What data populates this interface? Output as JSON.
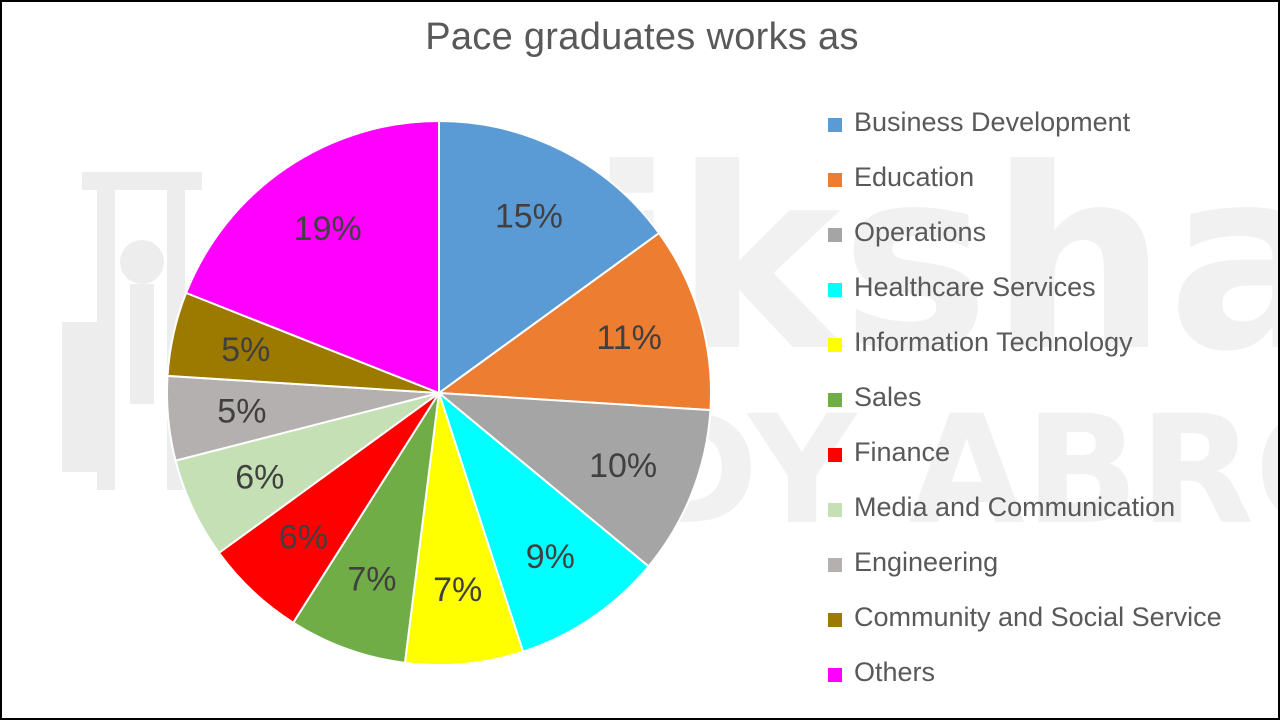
{
  "chart_data": {
    "type": "pie",
    "title": "Pace graduates works as",
    "legend_position": "right",
    "slices": [
      {
        "label": "Business Development",
        "value": 15,
        "value_label": "15%",
        "color": "#5B9BD5"
      },
      {
        "label": "Education",
        "value": 11,
        "value_label": "11%",
        "color": "#ED7D31"
      },
      {
        "label": "Operations",
        "value": 10,
        "value_label": "10%",
        "color": "#A5A5A5"
      },
      {
        "label": "Healthcare Services",
        "value": 9,
        "value_label": "9%",
        "color": "#00FFFF"
      },
      {
        "label": "Information Technology",
        "value": 7,
        "value_label": "7%",
        "color": "#FFFF00"
      },
      {
        "label": "Sales",
        "value": 7,
        "value_label": "7%",
        "color": "#70AD47"
      },
      {
        "label": "Finance",
        "value": 6,
        "value_label": "6%",
        "color": "#FF0000"
      },
      {
        "label": "Media and Communication",
        "value": 6,
        "value_label": "6%",
        "color": "#C5E0B4"
      },
      {
        "label": "Engineering",
        "value": 5,
        "value_label": "5%",
        "color": "#B4B0B0"
      },
      {
        "label": "Community and Social Service",
        "value": 5,
        "value_label": "5%",
        "color": "#9C7A00"
      },
      {
        "label": "Others",
        "value": 19,
        "value_label": "19%",
        "color": "#FF00FF"
      }
    ]
  },
  "watermark": {
    "brand": "shiksha",
    "tagline": "STUDY ABROAD"
  }
}
